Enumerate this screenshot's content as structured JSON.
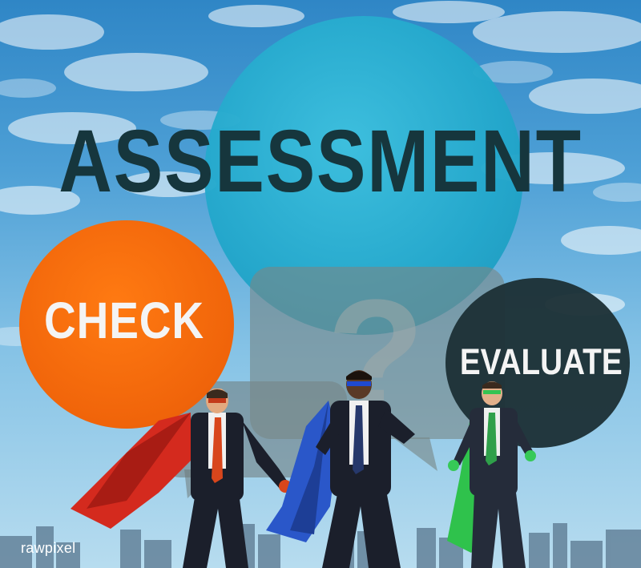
{
  "image": {
    "heading": "ASSESSMENT",
    "bubbles": {
      "left_label": "CHECK",
      "right_label": "EVALUATE",
      "center_symbol": "?"
    },
    "watermark": "rawpixel",
    "colors": {
      "sky": "#4ea0d6",
      "teal_bubble": "#22a7cb",
      "orange_bubble": "#f0640a",
      "dark_bubble": "#1d3136",
      "heading_text": "#16363d",
      "cape_red": "#d42a1e",
      "cape_blue": "#2a57c9",
      "cape_green": "#2fc24c"
    },
    "figures": [
      {
        "role": "businessman-left",
        "cape_color": "red"
      },
      {
        "role": "businessman-center",
        "cape_color": "blue"
      },
      {
        "role": "businessman-right",
        "cape_color": "green"
      }
    ]
  }
}
